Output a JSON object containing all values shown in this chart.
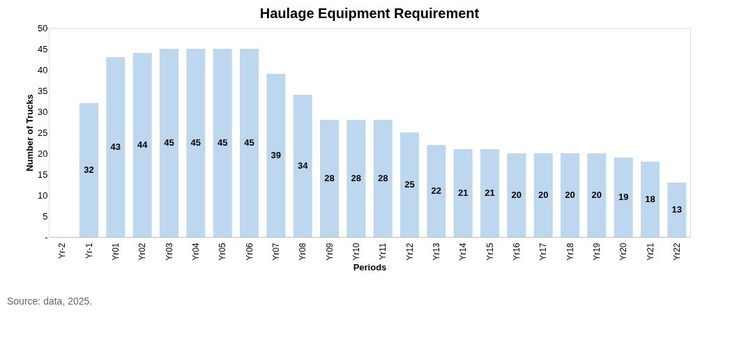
{
  "chart_data": {
    "type": "bar",
    "title": "Haulage Equipment Requirement",
    "xlabel": "Periods",
    "ylabel": "Number of Trucks",
    "categories": [
      "Yr-2",
      "Yr-1",
      "Yr01",
      "Yr02",
      "Yr03",
      "Yr04",
      "Yr05",
      "Yr06",
      "Yr07",
      "Yr08",
      "Yr09",
      "Yr10",
      "Yr11",
      "Yr12",
      "Yr13",
      "Yr14",
      "Yr15",
      "Yr16",
      "Yr17",
      "Yr18",
      "Yr19",
      "Yr20",
      "Yr21",
      "Yr22"
    ],
    "values": [
      null,
      32,
      43,
      44,
      45,
      45,
      45,
      45,
      39,
      34,
      28,
      28,
      28,
      25,
      22,
      21,
      21,
      20,
      20,
      20,
      20,
      19,
      18,
      13
    ],
    "color": "#bdd7ee",
    "data_labels": true,
    "grid": false,
    "ylim": [
      0,
      50
    ],
    "yticks": [
      {
        "value": 0,
        "label": "-"
      },
      5,
      10,
      15,
      20,
      25,
      30,
      35,
      40,
      45,
      50
    ],
    "annotations": [
      "Source: data, 2025."
    ]
  }
}
